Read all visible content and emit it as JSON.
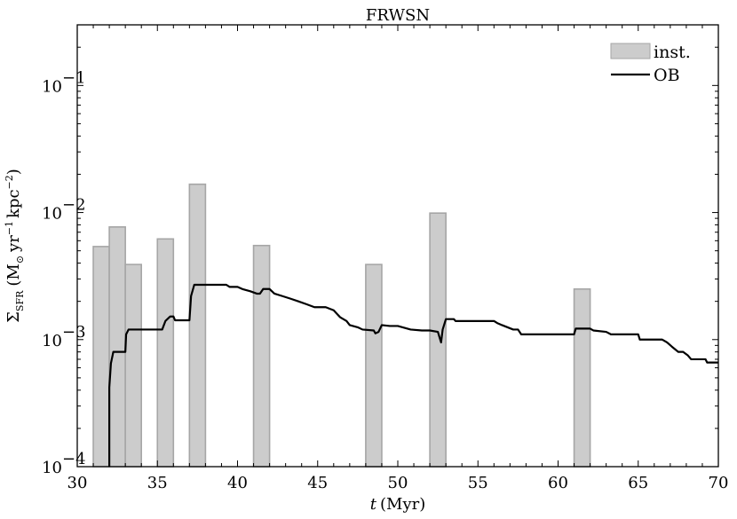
{
  "chart_data": {
    "type": "bar",
    "title": "FRWSN",
    "xlabel": "t (Myr)",
    "ylabel": "Σ_SFR (M⊙ yr⁻¹ kpc⁻²)",
    "xlim": [
      30,
      70
    ],
    "ylim": [
      0.0001,
      0.3
    ],
    "yscale": "log",
    "x_ticks": [
      30,
      35,
      40,
      45,
      50,
      55,
      60,
      65,
      70
    ],
    "y_ticks": [
      0.0001,
      0.001,
      0.01,
      0.1
    ],
    "y_tick_labels": [
      "10",
      "10",
      "10",
      "10"
    ],
    "y_tick_exponents": [
      "−4",
      "−3",
      "−2",
      "−1"
    ],
    "legend_position": "top-right",
    "grid": false,
    "series": [
      {
        "name": "inst.",
        "type": "bar",
        "color": "#cccccc",
        "edge_color": "#a6a6a6",
        "bars": [
          {
            "x0": 31.0,
            "x1": 32.0,
            "value": 0.0054
          },
          {
            "x0": 32.0,
            "x1": 33.0,
            "value": 0.0077
          },
          {
            "x0": 33.0,
            "x1": 34.0,
            "value": 0.0039
          },
          {
            "x0": 35.0,
            "x1": 36.0,
            "value": 0.0062
          },
          {
            "x0": 37.0,
            "x1": 38.0,
            "value": 0.0167
          },
          {
            "x0": 41.0,
            "x1": 42.0,
            "value": 0.0055
          },
          {
            "x0": 48.0,
            "x1": 49.0,
            "value": 0.0039
          },
          {
            "x0": 52.0,
            "x1": 53.0,
            "value": 0.0099
          },
          {
            "x0": 61.0,
            "x1": 62.0,
            "value": 0.0025
          }
        ]
      },
      {
        "name": "OB",
        "type": "line",
        "color": "#000000",
        "points": [
          [
            32.0,
            0.0001
          ],
          [
            32.0,
            0.00042
          ],
          [
            32.1,
            0.00065
          ],
          [
            32.25,
            0.0008
          ],
          [
            33.0,
            0.0008
          ],
          [
            33.05,
            0.0011
          ],
          [
            33.2,
            0.0012
          ],
          [
            35.3,
            0.0012
          ],
          [
            35.5,
            0.0014
          ],
          [
            35.8,
            0.00152
          ],
          [
            36.0,
            0.00152
          ],
          [
            36.1,
            0.00142
          ],
          [
            37.0,
            0.00142
          ],
          [
            37.1,
            0.0022
          ],
          [
            37.3,
            0.0027
          ],
          [
            39.3,
            0.0027
          ],
          [
            39.5,
            0.0026
          ],
          [
            40.0,
            0.0026
          ],
          [
            40.3,
            0.0025
          ],
          [
            40.8,
            0.0024
          ],
          [
            41.2,
            0.0023
          ],
          [
            41.4,
            0.0023
          ],
          [
            41.6,
            0.0025
          ],
          [
            42.0,
            0.0025
          ],
          [
            42.3,
            0.0023
          ],
          [
            42.8,
            0.0022
          ],
          [
            43.3,
            0.0021
          ],
          [
            43.8,
            0.002
          ],
          [
            44.3,
            0.0019
          ],
          [
            44.8,
            0.0018
          ],
          [
            45.5,
            0.0018
          ],
          [
            46.0,
            0.0017
          ],
          [
            46.4,
            0.0015
          ],
          [
            46.8,
            0.0014
          ],
          [
            47.0,
            0.0013
          ],
          [
            47.5,
            0.00125
          ],
          [
            47.8,
            0.0012
          ],
          [
            48.5,
            0.00118
          ],
          [
            48.6,
            0.00112
          ],
          [
            48.8,
            0.00115
          ],
          [
            49.0,
            0.0013
          ],
          [
            49.5,
            0.00128
          ],
          [
            50.0,
            0.00128
          ],
          [
            50.3,
            0.00125
          ],
          [
            50.8,
            0.0012
          ],
          [
            51.5,
            0.00118
          ],
          [
            52.0,
            0.00118
          ],
          [
            52.5,
            0.00115
          ],
          [
            52.7,
            0.00095
          ],
          [
            52.8,
            0.0012
          ],
          [
            53.0,
            0.00145
          ],
          [
            53.5,
            0.00145
          ],
          [
            53.6,
            0.0014
          ],
          [
            56.0,
            0.0014
          ],
          [
            56.2,
            0.00135
          ],
          [
            56.5,
            0.0013
          ],
          [
            57.2,
            0.0012
          ],
          [
            57.5,
            0.0012
          ],
          [
            57.7,
            0.0011
          ],
          [
            59.3,
            0.0011
          ],
          [
            59.5,
            0.0011
          ],
          [
            61.0,
            0.0011
          ],
          [
            61.1,
            0.00122
          ],
          [
            62.0,
            0.00122
          ],
          [
            62.2,
            0.00118
          ],
          [
            63.0,
            0.00115
          ],
          [
            63.3,
            0.0011
          ],
          [
            65.0,
            0.0011
          ],
          [
            65.1,
            0.001
          ],
          [
            66.5,
            0.001
          ],
          [
            66.8,
            0.00095
          ],
          [
            67.1,
            0.00088
          ],
          [
            67.5,
            0.0008
          ],
          [
            67.8,
            0.0008
          ],
          [
            68.1,
            0.00075
          ],
          [
            68.3,
            0.0007
          ],
          [
            69.2,
            0.0007
          ],
          [
            69.3,
            0.00066
          ],
          [
            70.0,
            0.00066
          ]
        ]
      }
    ]
  }
}
